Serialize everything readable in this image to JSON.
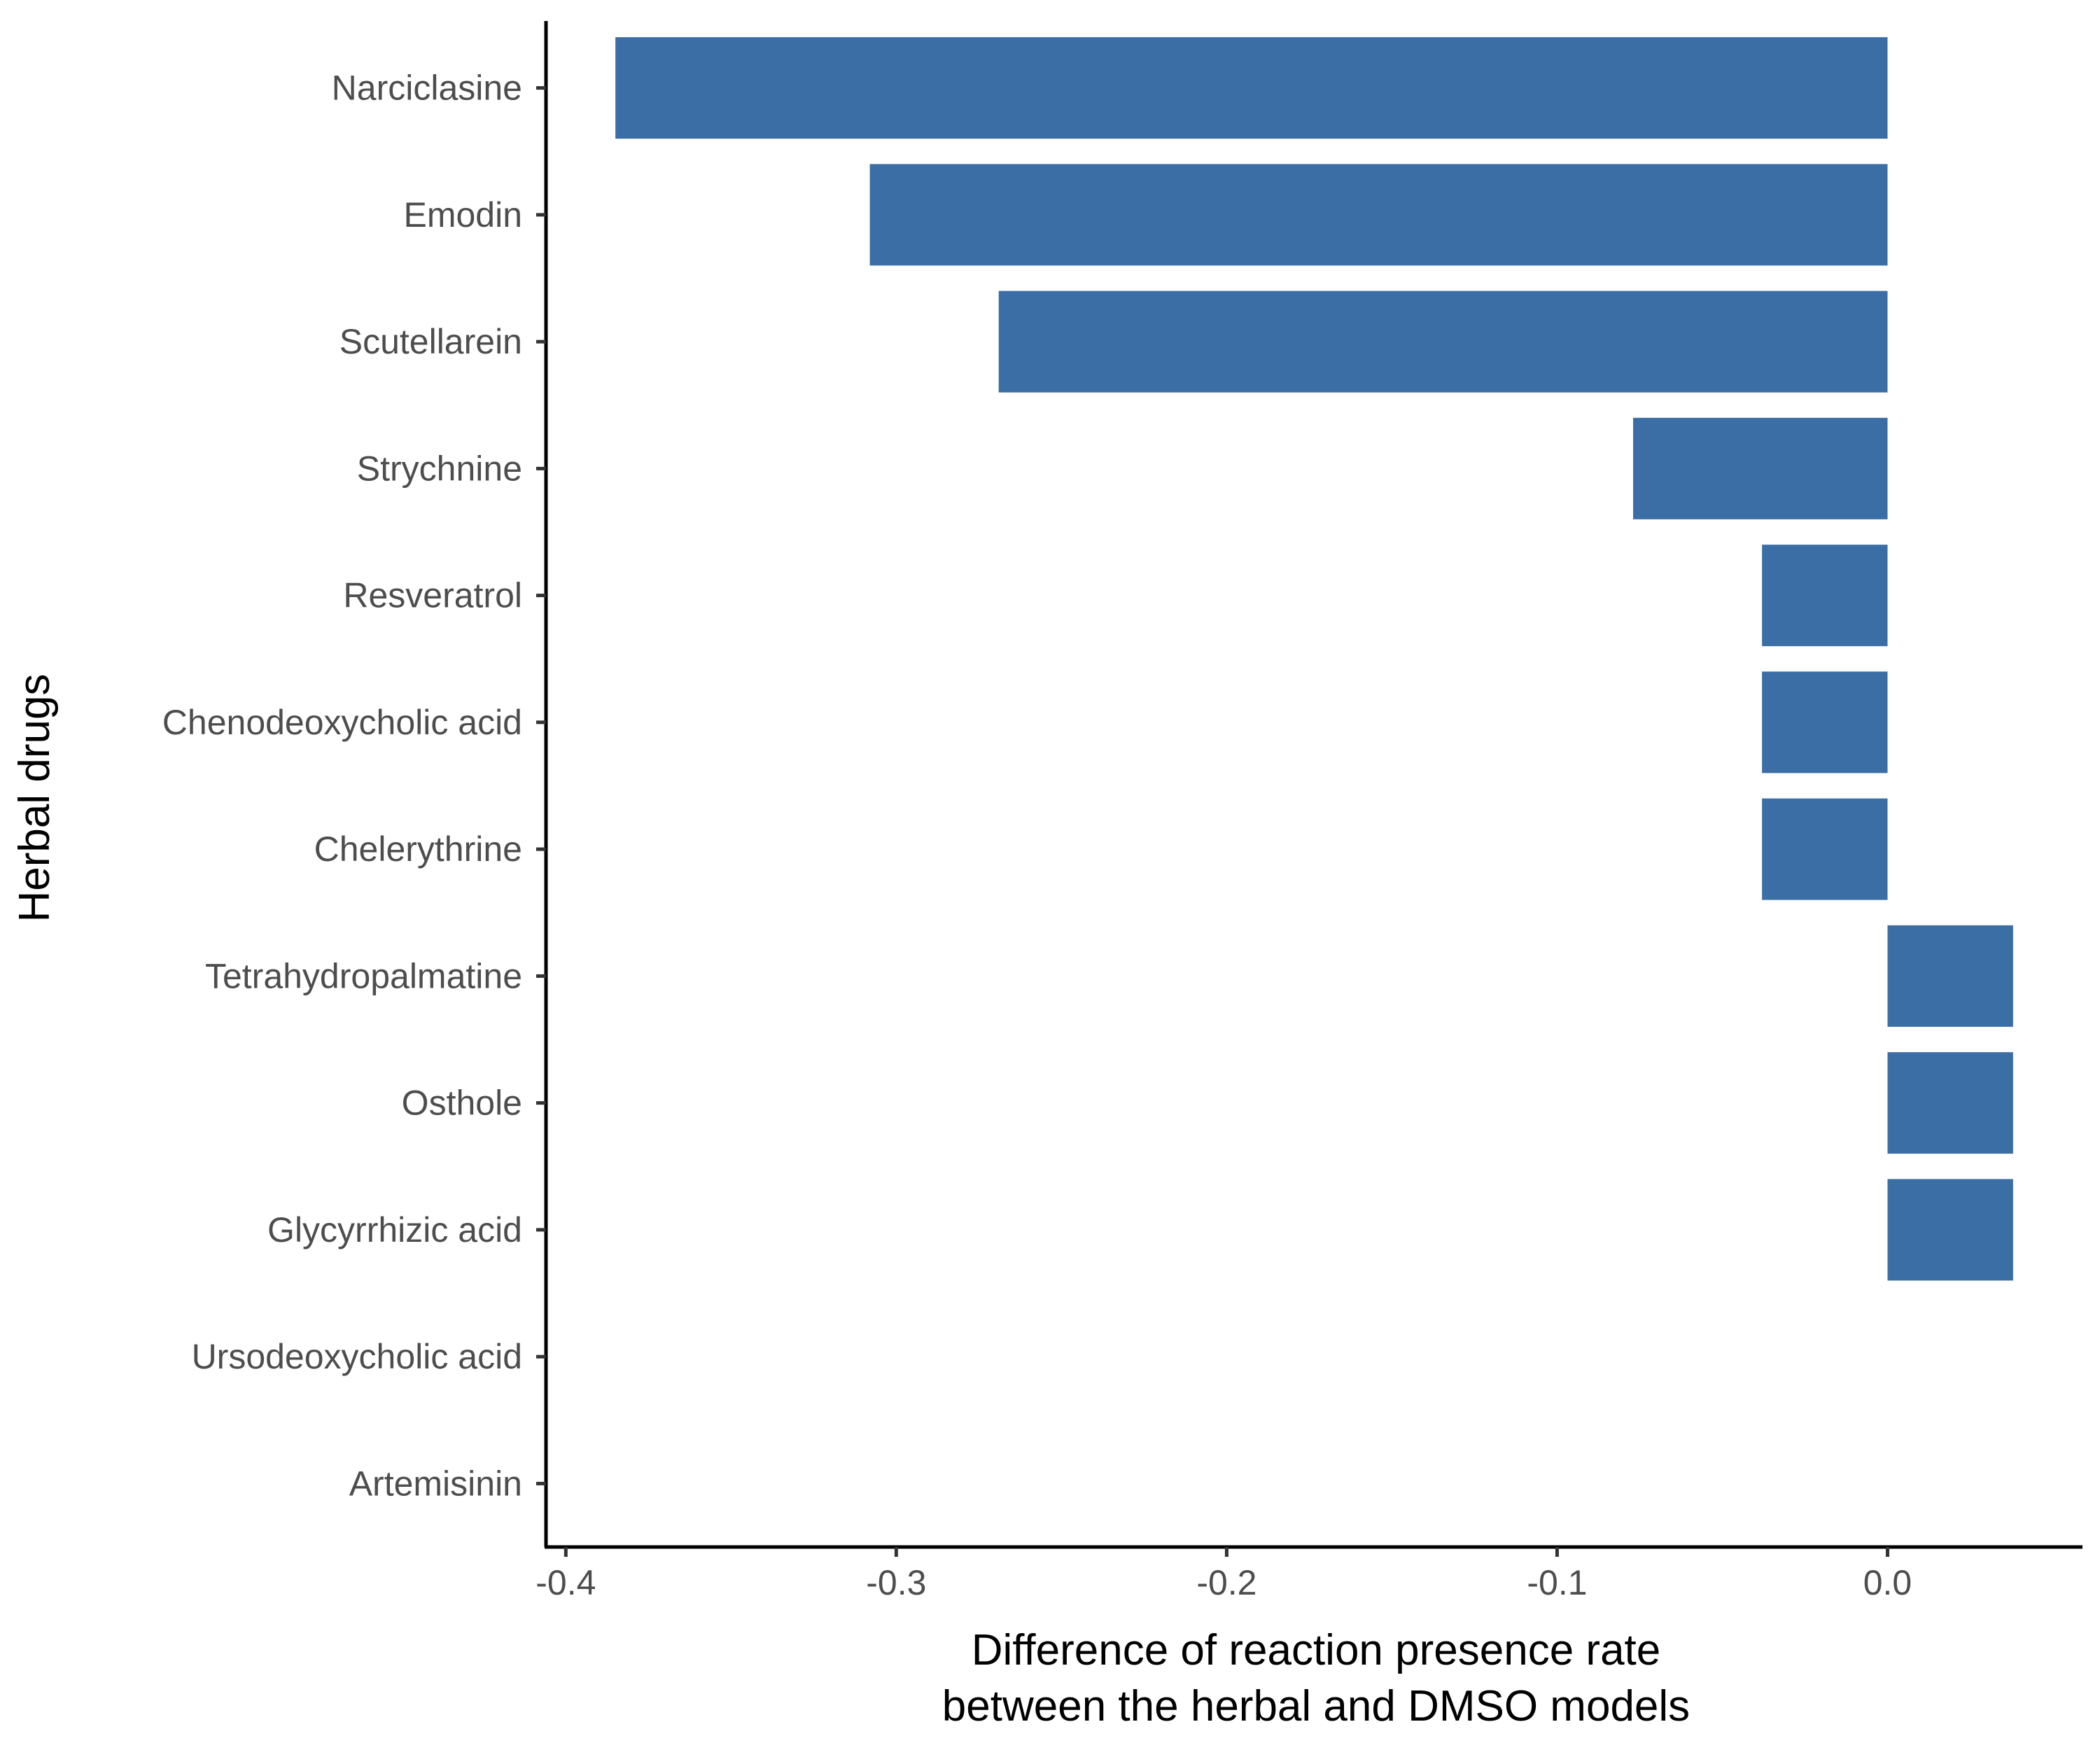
{
  "chart_data": {
    "type": "bar",
    "orientation": "horizontal",
    "categories": [
      "Narciclasine",
      "Emodin",
      "Scutellarein",
      "Strychnine",
      "Resveratrol",
      "Chenodeoxycholic acid",
      "Chelerythrine",
      "Tetrahydropalmatine",
      "Osthole",
      "Glycyrrhizic acid",
      "Ursodeoxycholic acid",
      "Artemisinin"
    ],
    "values": [
      -0.385,
      -0.308,
      -0.269,
      -0.077,
      -0.038,
      -0.038,
      -0.038,
      0.038,
      0.038,
      0.038,
      0,
      0
    ],
    "xlim": [
      -0.406,
      0.059
    ],
    "xticks": [
      -0.4,
      -0.3,
      -0.2,
      -0.1,
      0.0
    ],
    "xtick_labels": [
      "-0.4",
      "-0.3",
      "-0.2",
      "-0.1",
      "0.0"
    ],
    "xlabel_line1": "Difference of reaction presence rate",
    "xlabel_line2": "between the herbal and DMSO models",
    "ylabel": "Herbal drugs",
    "bar_color": "#3a6ea5",
    "grid": false,
    "legend": "none"
  }
}
